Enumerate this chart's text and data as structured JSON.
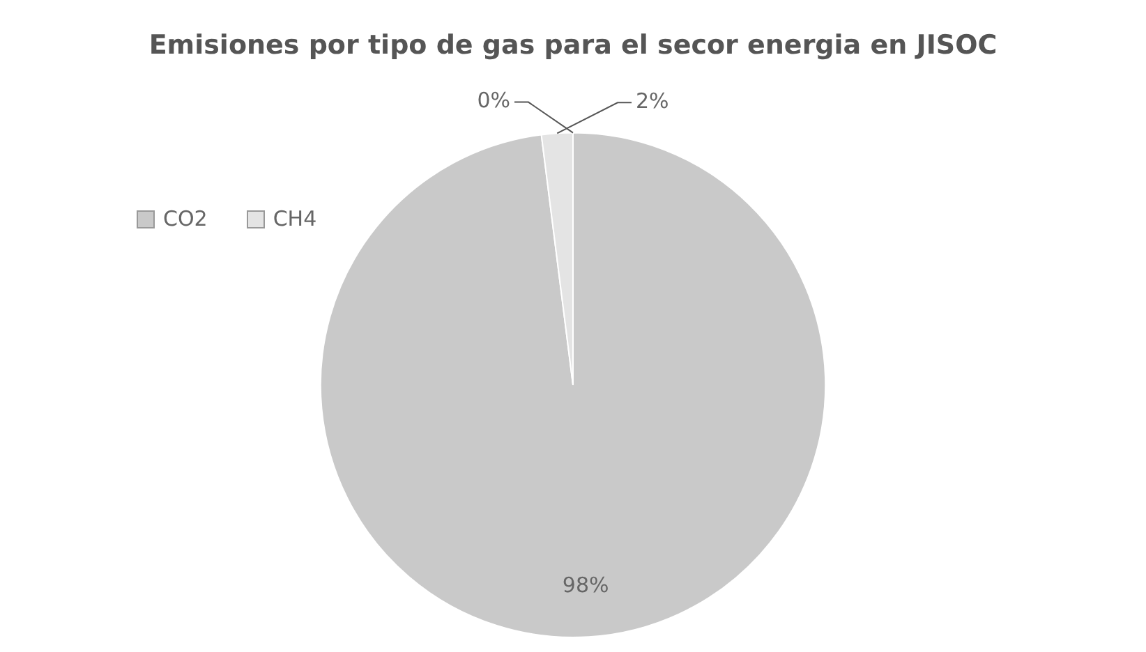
{
  "chart_data": {
    "type": "pie",
    "title": "Emisiones por tipo de gas para el secor energia en JISOC",
    "categories": [
      "CO2",
      "CH4",
      null
    ],
    "values": [
      98,
      2,
      0
    ],
    "colors": [
      "#c9c9c9",
      "#e4e4e4",
      "#b0b0b0"
    ],
    "legend": "top left",
    "value_labels": [
      "98%",
      "2%",
      "0%"
    ]
  }
}
